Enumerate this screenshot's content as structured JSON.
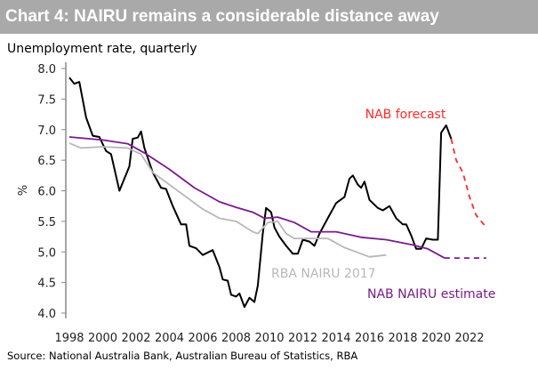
{
  "title": "Chart 4: NAIRU remains a considerable distance away",
  "source": "Source: National Australia Bank, Australian Bureau of Statistics, RBA",
  "chart_data": {
    "type": "line",
    "title": "Chart 4: NAIRU remains a considerable distance away",
    "subtitle": "Unemployment rate, quarterly",
    "ylabel": "%",
    "xlabel": "",
    "ylim": [
      4.0,
      8.0
    ],
    "xlim": [
      1998,
      2023.5
    ],
    "yticks": [
      "4.0",
      "4.5",
      "5.0",
      "5.5",
      "6.0",
      "6.5",
      "7.0",
      "7.5",
      "8.0"
    ],
    "xticks": [
      "1998",
      "2000",
      "2002",
      "2004",
      "2006",
      "2008",
      "2010",
      "2012",
      "2014",
      "2016",
      "2018",
      "2020",
      "2022"
    ],
    "grid": false,
    "series": [
      {
        "key": "unemp",
        "color": "#000000",
        "dash": false,
        "points": [
          [
            1998.0,
            7.85
          ],
          [
            1998.3,
            7.75
          ],
          [
            1998.6,
            7.78
          ],
          [
            1999.0,
            7.2
          ],
          [
            1999.4,
            6.9
          ],
          [
            1999.8,
            6.88
          ],
          [
            2000.2,
            6.65
          ],
          [
            2000.5,
            6.6
          ],
          [
            2001.0,
            6.0
          ],
          [
            2001.6,
            6.4
          ],
          [
            2001.8,
            6.85
          ],
          [
            2002.1,
            6.87
          ],
          [
            2002.3,
            6.97
          ],
          [
            2002.5,
            6.7
          ],
          [
            2003.0,
            6.3
          ],
          [
            2003.5,
            6.05
          ],
          [
            2003.8,
            6.03
          ],
          [
            2004.2,
            5.75
          ],
          [
            2004.7,
            5.45
          ],
          [
            2005.0,
            5.45
          ],
          [
            2005.2,
            5.1
          ],
          [
            2005.6,
            5.06
          ],
          [
            2006.0,
            4.95
          ],
          [
            2006.6,
            5.03
          ],
          [
            2007.0,
            4.75
          ],
          [
            2007.2,
            4.55
          ],
          [
            2007.5,
            4.53
          ],
          [
            2007.7,
            4.3
          ],
          [
            2008.0,
            4.27
          ],
          [
            2008.2,
            4.32
          ],
          [
            2008.5,
            4.1
          ],
          [
            2008.8,
            4.25
          ],
          [
            2009.1,
            4.18
          ],
          [
            2009.3,
            4.45
          ],
          [
            2009.6,
            5.3
          ],
          [
            2009.8,
            5.72
          ],
          [
            2010.1,
            5.65
          ],
          [
            2010.3,
            5.4
          ],
          [
            2010.6,
            5.25
          ],
          [
            2011.0,
            5.1
          ],
          [
            2011.4,
            4.97
          ],
          [
            2011.7,
            4.97
          ],
          [
            2012.0,
            5.2
          ],
          [
            2012.4,
            5.17
          ],
          [
            2012.7,
            5.1
          ],
          [
            2013.0,
            5.3
          ],
          [
            2013.5,
            5.55
          ],
          [
            2014.0,
            5.8
          ],
          [
            2014.5,
            5.9
          ],
          [
            2014.8,
            6.2
          ],
          [
            2015.0,
            6.25
          ],
          [
            2015.3,
            6.1
          ],
          [
            2015.5,
            6.05
          ],
          [
            2015.7,
            6.15
          ],
          [
            2016.0,
            5.85
          ],
          [
            2016.5,
            5.72
          ],
          [
            2016.8,
            5.68
          ],
          [
            2017.2,
            5.75
          ],
          [
            2017.6,
            5.55
          ],
          [
            2018.0,
            5.45
          ],
          [
            2018.2,
            5.45
          ],
          [
            2018.5,
            5.27
          ],
          [
            2018.8,
            5.05
          ],
          [
            2019.1,
            5.05
          ],
          [
            2019.4,
            5.22
          ],
          [
            2019.8,
            5.2
          ],
          [
            2020.1,
            5.2
          ],
          [
            2020.3,
            6.95
          ],
          [
            2020.6,
            7.07
          ],
          [
            2020.9,
            6.85
          ]
        ]
      },
      {
        "key": "forecast",
        "name": "NAB forecast",
        "color": "#ff2a2a",
        "dash": true,
        "points": [
          [
            2020.9,
            6.85
          ],
          [
            2021.2,
            6.5
          ],
          [
            2021.6,
            6.3
          ],
          [
            2022.0,
            5.9
          ],
          [
            2022.4,
            5.6
          ],
          [
            2023.0,
            5.4
          ]
        ]
      },
      {
        "key": "nab_nairu",
        "name": "NAB NAIRU estimate",
        "color": "#7a1a8c",
        "dash": false,
        "points": [
          [
            1998.0,
            6.88
          ],
          [
            2000.0,
            6.83
          ],
          [
            2001.5,
            6.77
          ],
          [
            2002.5,
            6.62
          ],
          [
            2004.0,
            6.35
          ],
          [
            2005.5,
            6.05
          ],
          [
            2007.0,
            5.82
          ],
          [
            2008.0,
            5.73
          ],
          [
            2009.0,
            5.65
          ],
          [
            2009.7,
            5.55
          ],
          [
            2010.5,
            5.57
          ],
          [
            2011.5,
            5.48
          ],
          [
            2012.5,
            5.33
          ],
          [
            2014.0,
            5.33
          ],
          [
            2015.5,
            5.24
          ],
          [
            2017.0,
            5.2
          ],
          [
            2018.5,
            5.12
          ],
          [
            2019.5,
            5.05
          ],
          [
            2020.5,
            4.9
          ]
        ]
      },
      {
        "key": "nab_nairu_proj",
        "color": "#7a1a8c",
        "dash": true,
        "points": [
          [
            2020.5,
            4.9
          ],
          [
            2023.0,
            4.9
          ]
        ]
      },
      {
        "key": "rba_nairu",
        "name": "RBA NAIRU 2017",
        "color": "#b8b8b8",
        "dash": false,
        "points": [
          [
            1998.0,
            6.78
          ],
          [
            1998.7,
            6.7
          ],
          [
            2000.0,
            6.72
          ],
          [
            2001.5,
            6.7
          ],
          [
            2002.3,
            6.6
          ],
          [
            2003.0,
            6.3
          ],
          [
            2004.0,
            6.1
          ],
          [
            2005.0,
            5.9
          ],
          [
            2006.0,
            5.7
          ],
          [
            2007.0,
            5.55
          ],
          [
            2008.0,
            5.5
          ],
          [
            2009.0,
            5.33
          ],
          [
            2009.3,
            5.3
          ],
          [
            2009.9,
            5.48
          ],
          [
            2010.5,
            5.5
          ],
          [
            2011.0,
            5.3
          ],
          [
            2011.5,
            5.22
          ],
          [
            2012.5,
            5.22
          ],
          [
            2013.5,
            5.22
          ],
          [
            2014.5,
            5.07
          ],
          [
            2015.5,
            4.97
          ],
          [
            2016.0,
            4.92
          ],
          [
            2017.0,
            4.95
          ]
        ]
      }
    ],
    "annotations": [
      {
        "text": "NAB forecast",
        "color": "#ff2a2a"
      },
      {
        "text": "RBA NAIRU 2017",
        "color": "#b8b8b8"
      },
      {
        "text": "NAB NAIRU estimate",
        "color": "#7a1a8c"
      }
    ]
  }
}
